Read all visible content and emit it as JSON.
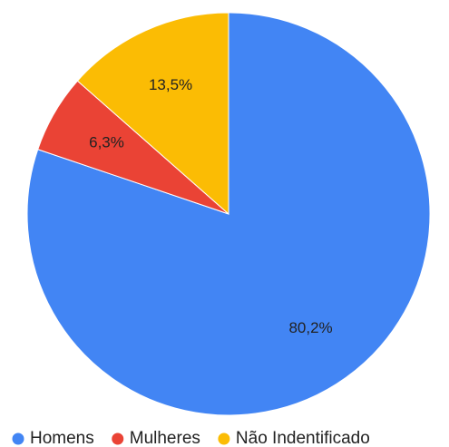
{
  "chart_data": {
    "type": "pie",
    "categories": [
      "Homens",
      "Mulheres",
      "Não Indentificado"
    ],
    "values": [
      80.2,
      6.3,
      13.5
    ],
    "value_labels": [
      "80,2%",
      "6,3%",
      "13,5%"
    ],
    "colors": [
      "#4285f4",
      "#ea4335",
      "#fbbc04"
    ],
    "legend": "bottom"
  }
}
